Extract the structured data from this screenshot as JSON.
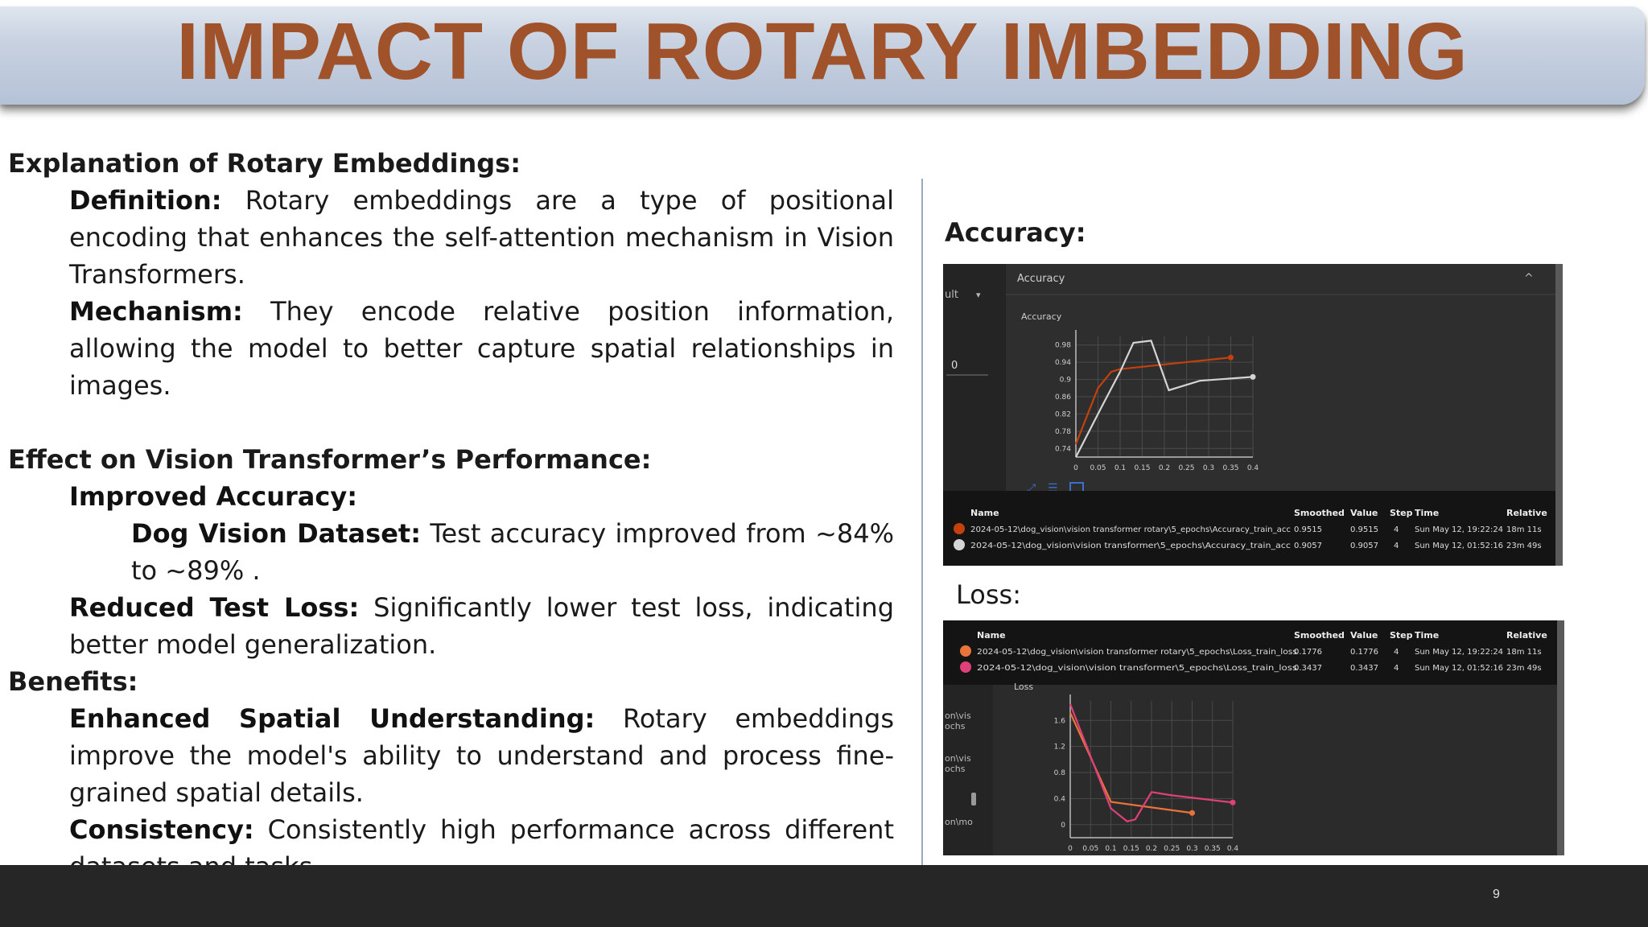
{
  "slide": {
    "title": "IMPACT OF ROTARY IMBEDDING",
    "page_number": "9"
  },
  "left": {
    "explanation_heading": "Explanation of Rotary Embeddings:",
    "definition_label": "Definition:",
    "definition_text": " Rotary embeddings are a type of positional encoding that enhances the self-attention mechanism in Vision Transformers.",
    "mechanism_label": "Mechanism:",
    "mechanism_text": " They encode relative position information, allowing the model to better capture spatial relationships in images.",
    "effect_heading": "Effect on Vision Transformer’s Performance:",
    "accuracy_label": "Improved Accuracy:",
    "dog_label": "Dog Vision Dataset:",
    "dog_text": " Test accuracy improved from ~84% to ~89% .",
    "loss_label": "Reduced Test Loss:",
    "loss_text": " Significantly lower test loss, indicating better model generalization.",
    "benefits_heading": "Benefits:",
    "spatial_label": "Enhanced Spatial Understanding:",
    "spatial_text": " Rotary embeddings improve the model's ability to understand and process fine-grained spatial details.",
    "consistency_label": "Consistency:",
    "consistency_text": " Consistently high performance across different datasets and tasks."
  },
  "right": {
    "accuracy_title": "Accuracy:",
    "loss_title": "Loss:"
  },
  "accuracy_panel": {
    "sidebar_items": [
      "ult",
      "0"
    ],
    "header": "Accuracy",
    "chart_title": "Accuracy",
    "columns": [
      "Name",
      "Smoothed",
      "Value",
      "Step",
      "Time",
      "Relative"
    ],
    "rows": [
      {
        "name": "2024-05-12\\dog_vision\\vision transformer rotary\\5_epochs\\Accuracy_train_acc",
        "smoothed": "0.9515",
        "value": "0.9515",
        "step": "4",
        "time": "Sun May 12, 19:22:24",
        "relative": "18m 11s",
        "color": "#c2410c"
      },
      {
        "name": "2024-05-12\\dog_vision\\vision transformer\\5_epochs\\Accuracy_train_acc",
        "smoothed": "0.9057",
        "value": "0.9057",
        "step": "4",
        "time": "Sun May 12, 01:52:16",
        "relative": "23m 49s",
        "color": "#d4d4d4"
      }
    ]
  },
  "loss_panel": {
    "sidebar_items": [
      "on\\vis",
      "ochs",
      "on\\vis",
      "ochs",
      "on\\mo"
    ],
    "chart_title": "Loss",
    "columns": [
      "Name",
      "Smoothed",
      "Value",
      "Step",
      "Time",
      "Relative"
    ],
    "rows": [
      {
        "name": "2024-05-12\\dog_vision\\vision transformer rotary\\5_epochs\\Loss_train_loss",
        "smoothed": "0.1776",
        "value": "0.1776",
        "step": "4",
        "time": "Sun May 12, 19:22:24",
        "relative": "18m 11s",
        "color": "#e8743b"
      },
      {
        "name": "2024-05-12\\dog_vision\\vision transformer\\5_epochs\\Loss_train_loss",
        "smoothed": "0.3437",
        "value": "0.3437",
        "step": "4",
        "time": "Sun May 12, 01:52:16",
        "relative": "23m 49s",
        "color": "#e0407a"
      }
    ]
  },
  "chart_data": [
    {
      "type": "line",
      "title": "Accuracy",
      "xlim": [
        0,
        0.4
      ],
      "ylim": [
        0.72,
        1.0
      ],
      "xticks": [
        "0",
        "0.05",
        "0.1",
        "0.15",
        "0.2",
        "0.25",
        "0.3",
        "0.35",
        "0.4"
      ],
      "yticks": [
        "0.74",
        "0.78",
        "0.82",
        "0.86",
        "0.9",
        "0.94",
        "0.98"
      ],
      "grid": true,
      "series": [
        {
          "color": "#c2410c",
          "x": [
            0,
            0.05,
            0.08,
            0.1,
            0.35
          ],
          "y": [
            0.75,
            0.88,
            0.918,
            0.924,
            0.951
          ]
        },
        {
          "color": "#d4d4d4",
          "x": [
            0,
            0.06,
            0.1,
            0.13,
            0.17,
            0.21,
            0.28,
            0.4
          ],
          "y": [
            0.72,
            0.84,
            0.918,
            0.985,
            0.99,
            0.875,
            0.897,
            0.906
          ]
        }
      ]
    },
    {
      "type": "line",
      "title": "Loss",
      "xlim": [
        0,
        0.4
      ],
      "ylim": [
        -0.2,
        1.9
      ],
      "xticks": [
        "0",
        "0.05",
        "0.1",
        "0.15",
        "0.2",
        "0.25",
        "0.3",
        "0.35",
        "0.4"
      ],
      "yticks": [
        "0",
        "0.4",
        "0.8",
        "1.2",
        "1.6"
      ],
      "grid": true,
      "series": [
        {
          "color": "#e8743b",
          "x": [
            0,
            0.1,
            0.3
          ],
          "y": [
            1.72,
            0.35,
            0.18
          ]
        },
        {
          "color": "#e0407a",
          "x": [
            0,
            0.1,
            0.14,
            0.16,
            0.2,
            0.25,
            0.4
          ],
          "y": [
            1.85,
            0.25,
            0.05,
            0.08,
            0.5,
            0.45,
            0.34
          ]
        }
      ]
    }
  ]
}
